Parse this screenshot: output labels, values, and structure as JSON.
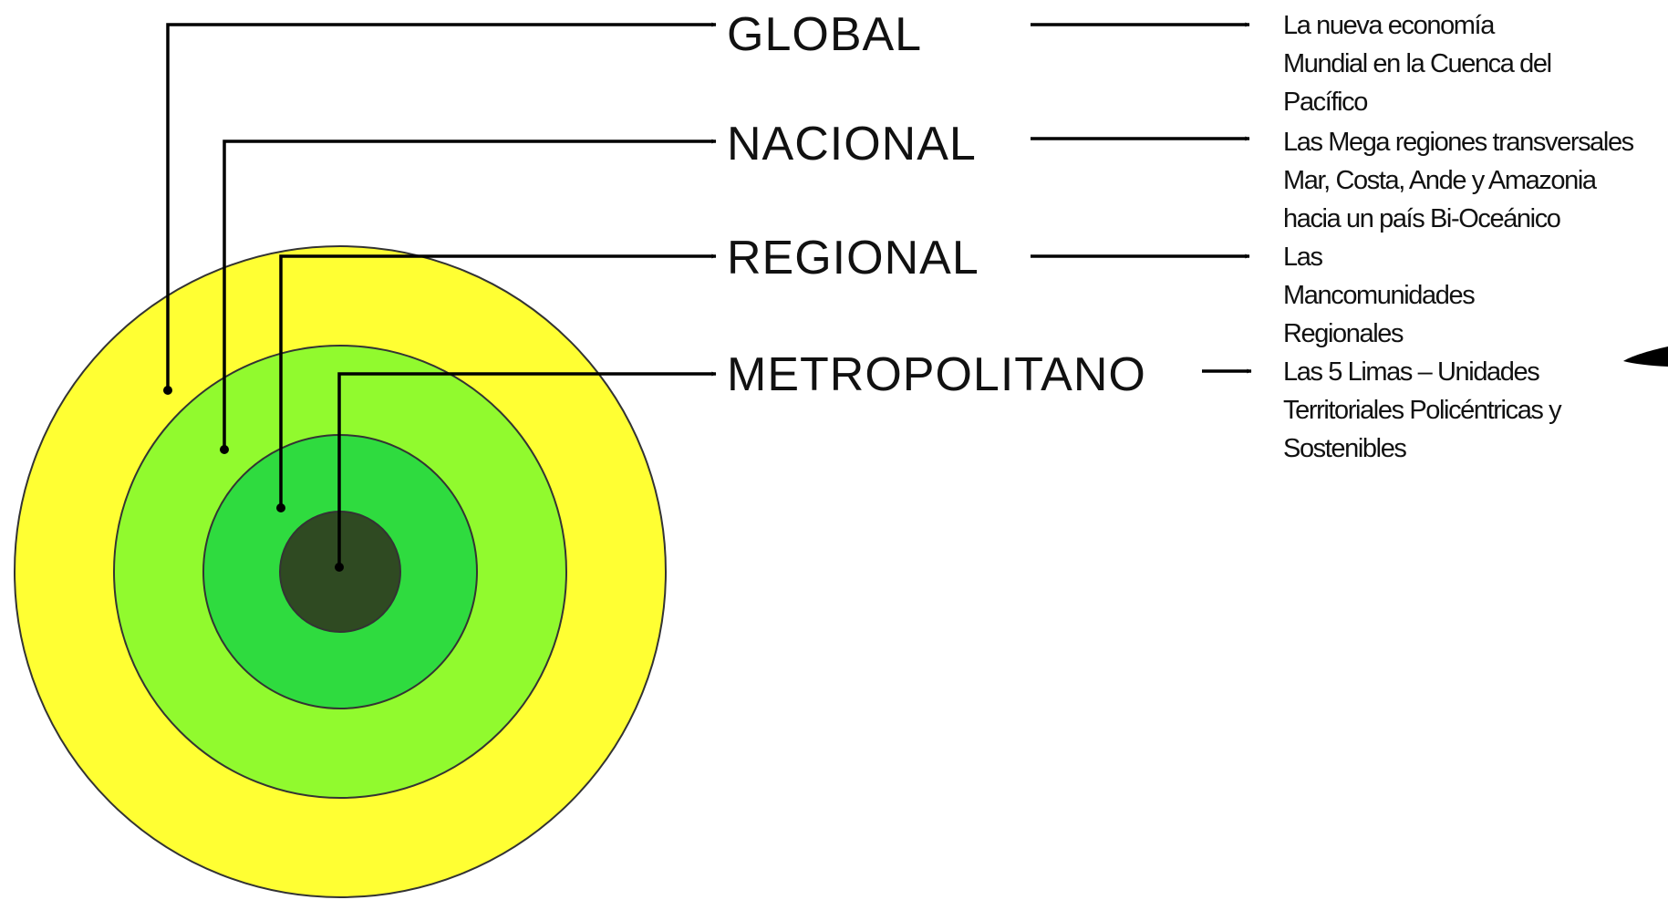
{
  "diagram": {
    "levels": [
      {
        "id": "global",
        "label": "GLOBAL",
        "ring_color": "#ffff33",
        "description": [
          "La nueva economía",
          "Mundial en la Cuenca del",
          "Pacífico"
        ]
      },
      {
        "id": "nacional",
        "label": "NACIONAL",
        "ring_color": "#91fa2e",
        "description": [
          "Las Mega regiones transversales",
          "Mar, Costa, Ande y Amazonia",
          "hacia un país Bi-Oceánico"
        ]
      },
      {
        "id": "regional",
        "label": "REGIONAL",
        "ring_color": "#2fdb3f",
        "description": [
          "Las",
          "Mancomunidades",
          "Regionales"
        ]
      },
      {
        "id": "metropolitano",
        "label": "METROPOLITANO",
        "ring_color": "#2f4a22",
        "description": [
          "Las 5 Limas – Unidades",
          "Territoriales Policéntricas y",
          "Sostenibles"
        ]
      }
    ]
  }
}
